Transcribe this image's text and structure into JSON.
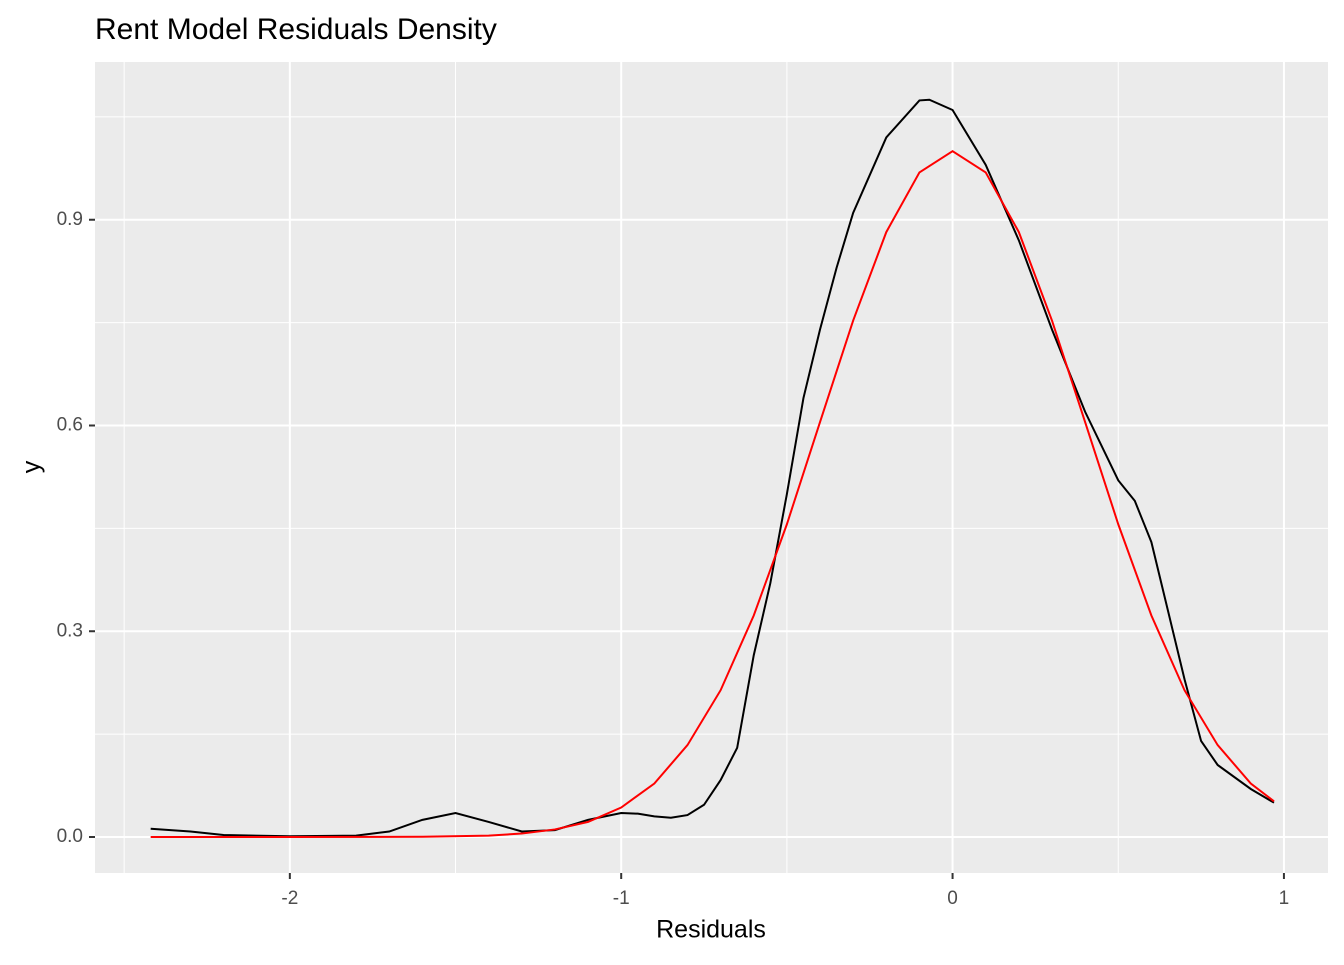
{
  "chart_data": {
    "type": "line",
    "title": "Rent Model Residuals Density",
    "x_label": "Residuals",
    "y_label": "y",
    "xlim": [
      -2.588,
      1.133
    ],
    "ylim": [
      -0.0525,
      1.13
    ],
    "xticks": [
      -2,
      -1,
      0,
      1
    ],
    "yticks": [
      {
        "value": 0,
        "label": "0.0"
      },
      0.3,
      0.6,
      0.9
    ],
    "x_minor_grid": [
      -2.5,
      -1.5,
      -0.5,
      0.5
    ],
    "y_minor_grid": [
      0.15,
      0.45,
      0.75,
      1.05
    ],
    "grid": true,
    "series": [
      {
        "color": "#000000",
        "x": [
          -2.42,
          -2.3,
          -2.2,
          -2.0,
          -1.8,
          -1.7,
          -1.6,
          -1.5,
          -1.4,
          -1.3,
          -1.2,
          -1.1,
          -1.0,
          -0.95,
          -0.9,
          -0.85,
          -0.8,
          -0.75,
          -0.7,
          -0.65,
          -0.6,
          -0.55,
          -0.5,
          -0.45,
          -0.4,
          -0.35,
          -0.3,
          -0.2,
          -0.1,
          -0.07,
          0,
          0.1,
          0.2,
          0.3,
          0.4,
          0.5,
          0.55,
          0.6,
          0.65,
          0.7,
          0.75,
          0.8,
          0.9,
          0.97
        ],
        "values": [
          0.012,
          0.008,
          0.003,
          0.001,
          0.002,
          0.008,
          0.025,
          0.035,
          0.022,
          0.008,
          0.01,
          0.025,
          0.035,
          0.034,
          0.03,
          0.028,
          0.032,
          0.047,
          0.083,
          0.13,
          0.265,
          0.37,
          0.5,
          0.64,
          0.74,
          0.83,
          0.91,
          1.02,
          1.074,
          1.075,
          1.06,
          0.98,
          0.87,
          0.74,
          0.62,
          0.52,
          0.49,
          0.43,
          0.33,
          0.23,
          0.14,
          0.105,
          0.07,
          0.05
        ]
      },
      {
        "color": "#ff0000",
        "x": [
          -2.42,
          -2.0,
          -1.6,
          -1.4,
          -1.3,
          -1.2,
          -1.1,
          -1.0,
          -0.9,
          -0.8,
          -0.7,
          -0.6,
          -0.5,
          -0.4,
          -0.3,
          -0.2,
          -0.1,
          0,
          0.1,
          0.2,
          0.3,
          0.4,
          0.5,
          0.6,
          0.7,
          0.8,
          0.9,
          0.97
        ],
        "values": [
          0,
          0,
          0.0003,
          0.002,
          0.005,
          0.011,
          0.022,
          0.043,
          0.078,
          0.134,
          0.214,
          0.323,
          0.456,
          0.605,
          0.753,
          0.882,
          0.969,
          1.0,
          0.969,
          0.882,
          0.753,
          0.605,
          0.456,
          0.323,
          0.214,
          0.134,
          0.078,
          0.052
        ]
      }
    ]
  }
}
